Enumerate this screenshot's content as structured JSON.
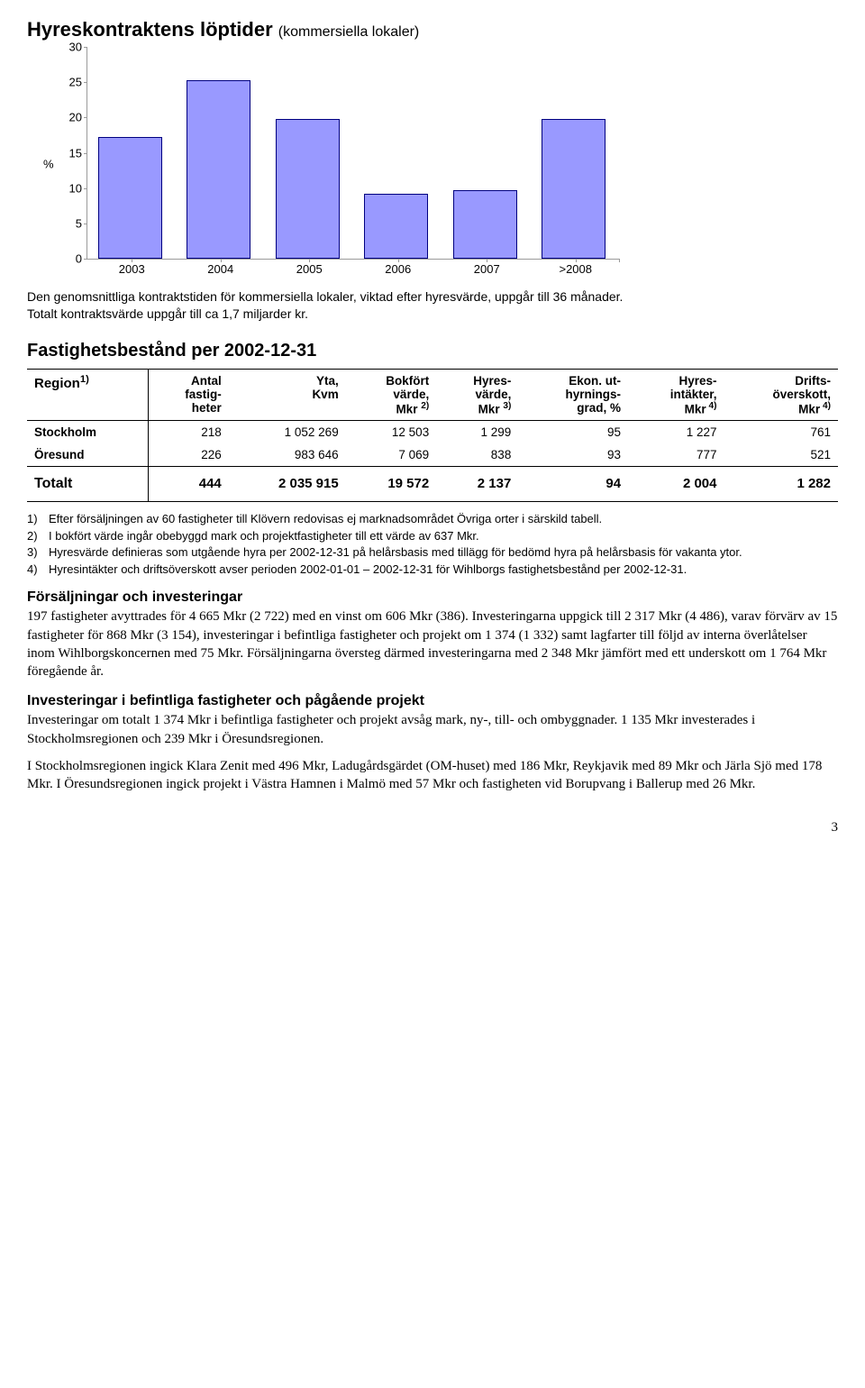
{
  "chart": {
    "type": "bar",
    "title": "Hyreskontraktens löptider",
    "subtitle": "(kommersiella lokaler)",
    "ylabel": "%",
    "categories": [
      "2003",
      "2004",
      "2005",
      "2006",
      "2007",
      ">2008"
    ],
    "values": [
      17,
      25,
      19.5,
      9,
      9.5,
      19.5
    ],
    "ylim_max": 30,
    "yticks": [
      0,
      5,
      10,
      15,
      20,
      25,
      30
    ],
    "bar_fill": "#9999ff",
    "bar_border": "#000080",
    "axis_color": "#9a9a9a"
  },
  "chart_caption_line1": "Den genomsnittliga kontraktstiden för kommersiella lokaler, viktad efter hyresvärde, uppgår till 36 månader.",
  "chart_caption_line2": "Totalt kontraktsvärde uppgår till ca 1,7 miljarder kr.",
  "table_heading": "Fastighetsbestånd per 2002-12-31",
  "table": {
    "columns": [
      {
        "label_html": "Region<sup>1)</sup>"
      },
      {
        "label_html": "Antal<br>fastig-<br>heter"
      },
      {
        "label_html": "Yta,<br>Kvm"
      },
      {
        "label_html": "Bokfört<br>värde,<br>Mkr <sup>2)</sup>"
      },
      {
        "label_html": "Hyres-<br>värde,<br>Mkr <sup>3)</sup>"
      },
      {
        "label_html": "Ekon. ut-<br>hyrnings-<br>grad, %"
      },
      {
        "label_html": "Hyres-<br>intäkter,<br>Mkr<sup> 4)</sup>"
      },
      {
        "label_html": "Drifts-<br>överskott,<br>Mkr<sup> 4)</sup>"
      }
    ],
    "rows": [
      {
        "region": "Stockholm",
        "cells": [
          "218",
          "1 052 269",
          "12 503",
          "1 299",
          "95",
          "1 227",
          "761"
        ]
      },
      {
        "region": "Öresund",
        "cells": [
          "226",
          "983 646",
          "7 069",
          "838",
          "93",
          "777",
          "521"
        ]
      }
    ],
    "total": {
      "region": "Totalt",
      "cells": [
        "444",
        "2 035 915",
        "19 572",
        "2 137",
        "94",
        "2 004",
        "1 282"
      ]
    }
  },
  "footnotes": [
    {
      "n": "1)",
      "text": "Efter försäljningen av 60 fastigheter till Klövern redovisas ej marknadsområdet Övriga orter i särskild tabell."
    },
    {
      "n": "2)",
      "text": "I bokfört värde ingår obebyggd mark och projektfastigheter till ett värde av 637 Mkr."
    },
    {
      "n": "3)",
      "text": "Hyresvärde definieras som utgående hyra per 2002-12-31 på helårsbasis med tillägg för bedömd hyra på helårsbasis för vakanta ytor."
    },
    {
      "n": "4)",
      "text": "Hyresintäkter och driftsöverskott avser perioden 2002-01-01 – 2002-12-31 för Wihlborgs fastighetsbestånd per 2002-12-31."
    }
  ],
  "section1": {
    "heading": "Försäljningar och investeringar",
    "body": "197 fastigheter avyttrades för 4 665 Mkr (2 722) med en vinst om 606 Mkr (386). Investeringarna uppgick till 2 317 Mkr (4 486), varav förvärv av 15 fastigheter för 868 Mkr (3 154), investeringar i befintliga fastigheter och projekt om 1 374 (1 332) samt lagfarter till följd av interna överlåtelser inom Wihlborgskoncernen med 75 Mkr. Försäljningarna översteg därmed investeringarna med 2 348 Mkr jämfört med ett underskott om 1 764 Mkr föregående år."
  },
  "section2": {
    "heading": "Investeringar i befintliga fastigheter och pågående projekt",
    "body1": "Investeringar om totalt 1 374 Mkr i befintliga fastigheter och projekt avsåg mark, ny-, till- och ombyggnader. 1 135 Mkr investerades i Stockholmsregionen och 239 Mkr i Öresundsregionen.",
    "body2": "I Stockholmsregionen ingick Klara Zenit med 496 Mkr, Ladugårdsgärdet (OM-huset) med 186 Mkr, Reykjavik med 89 Mkr och Järla Sjö med 178 Mkr. I Öresundsregionen ingick projekt i Västra Hamnen i Malmö med 57 Mkr och fastigheten vid Borupvang i Ballerup med 26 Mkr."
  },
  "page_number": "3"
}
